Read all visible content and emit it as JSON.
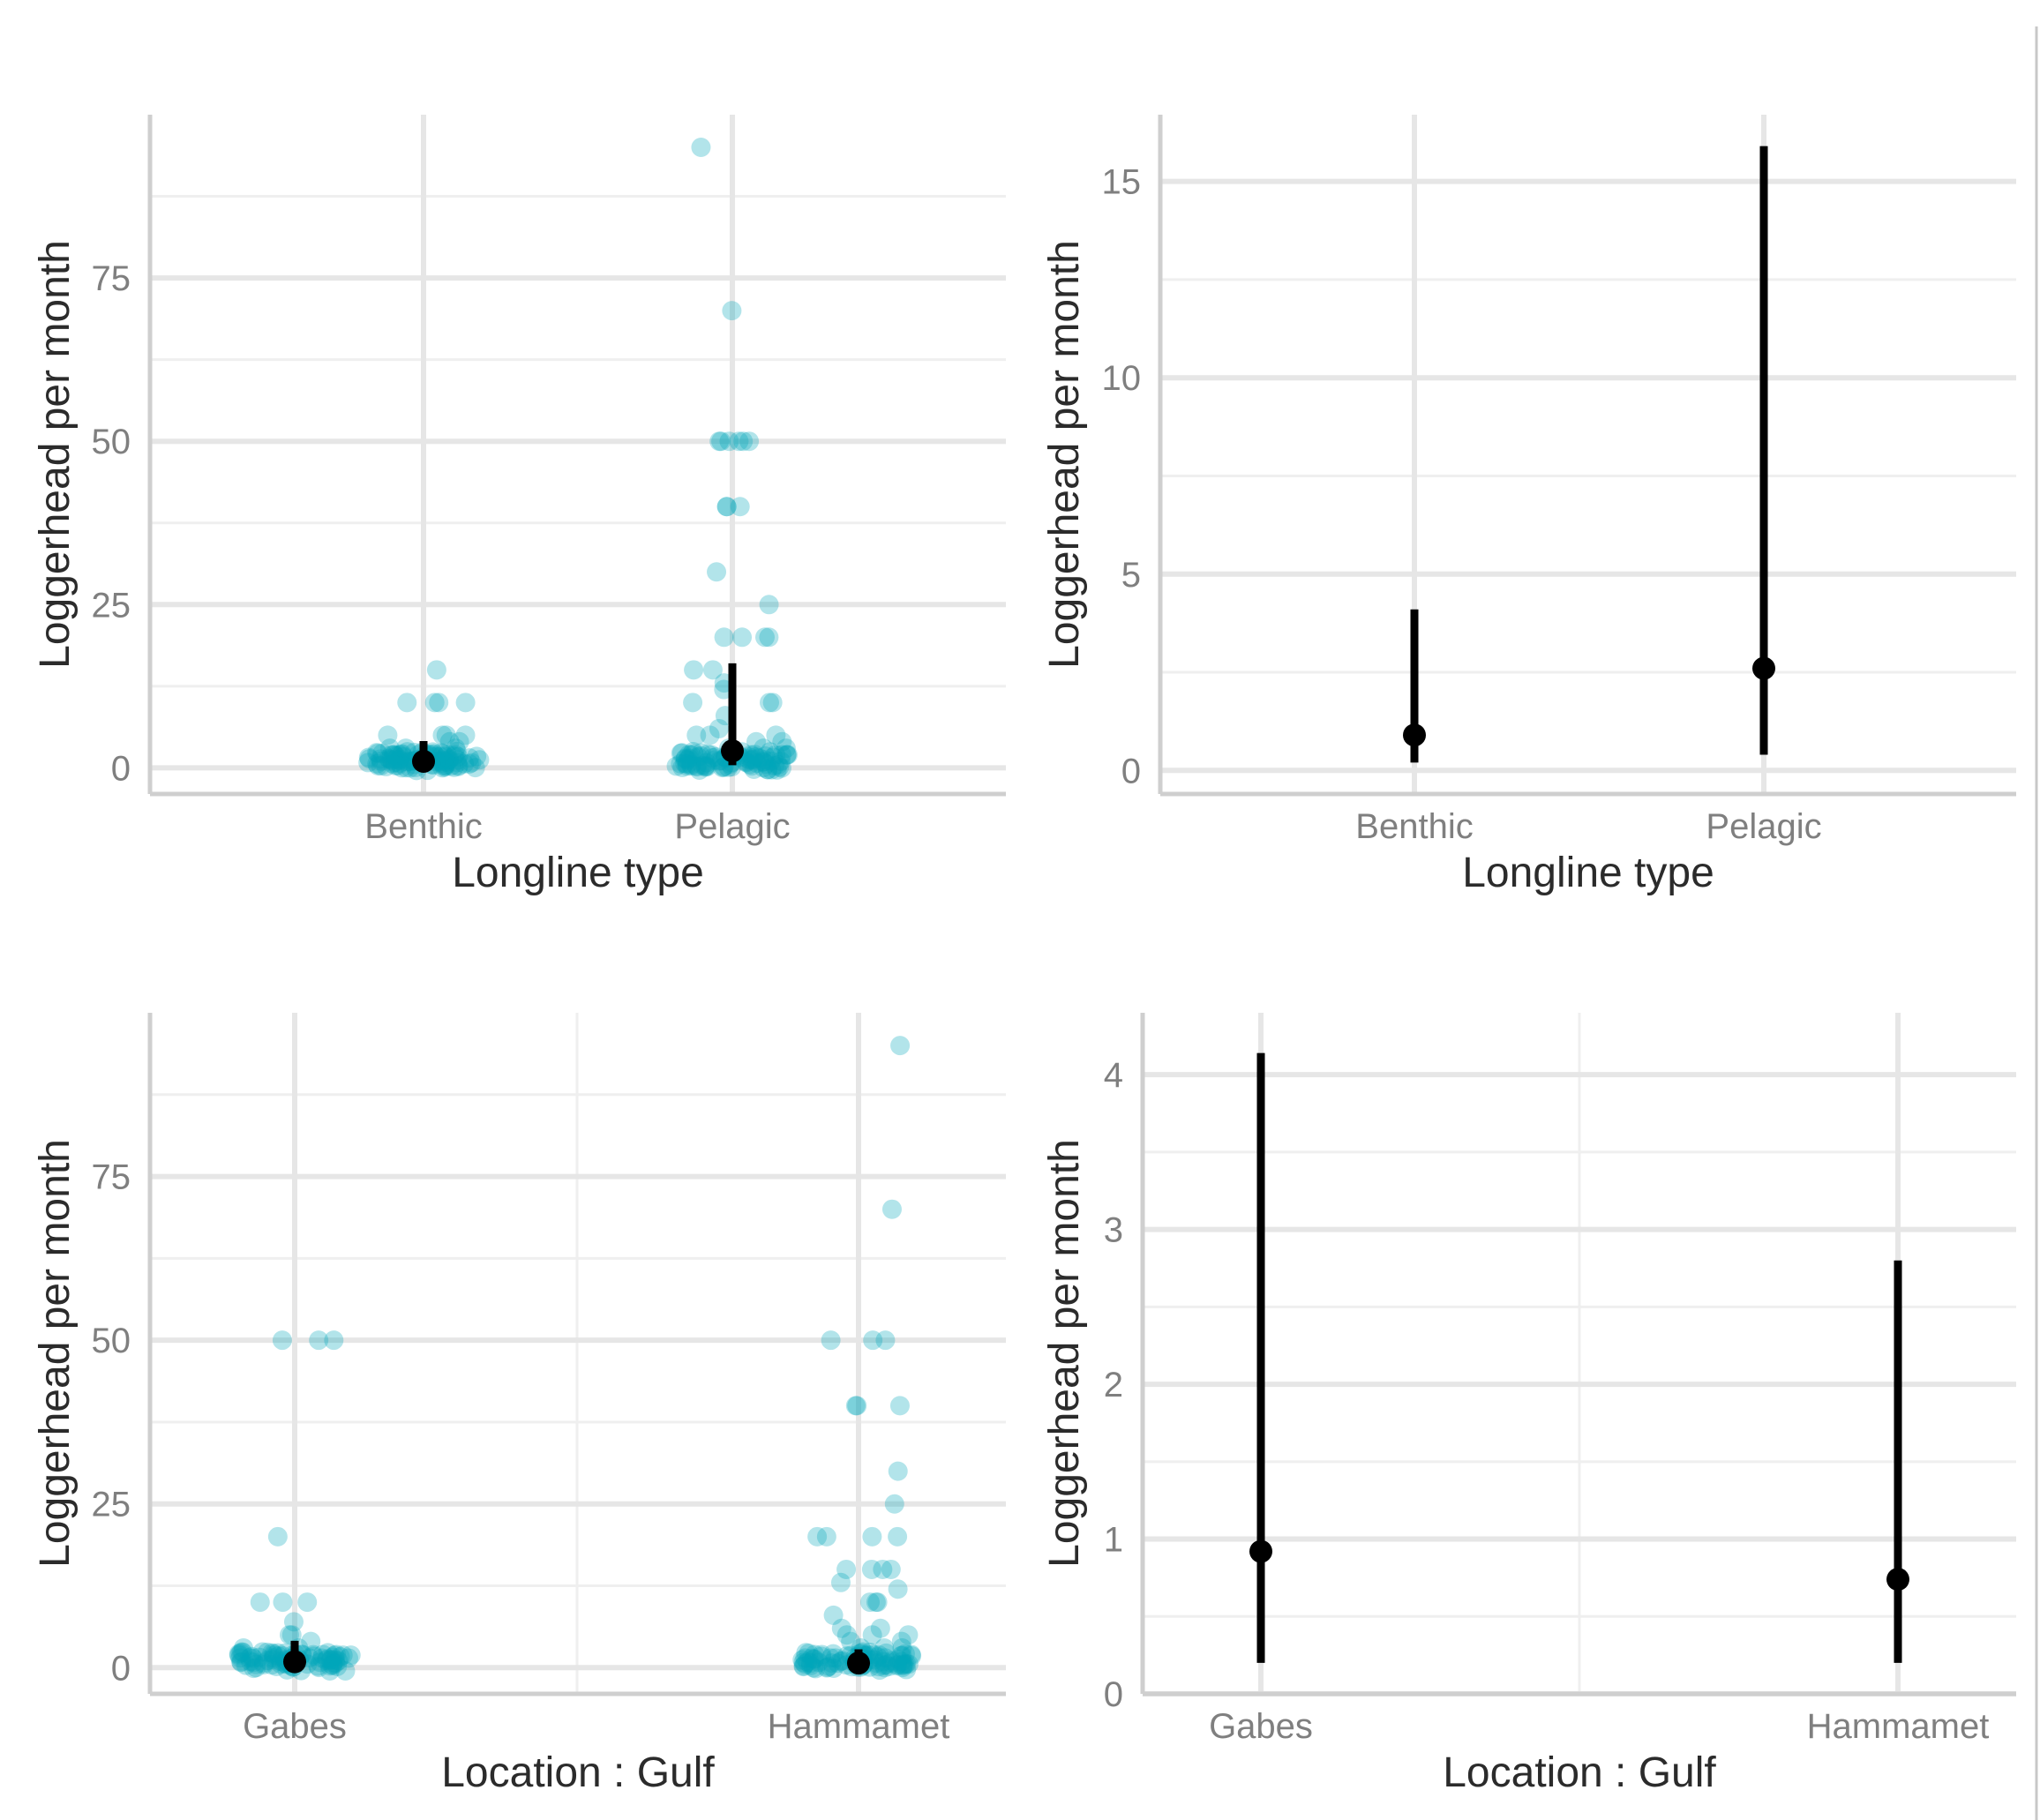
{
  "figure": {
    "panel_count": 4
  },
  "colors": {
    "points": "#00a5b8",
    "estimate": "#000000",
    "grid": "#e6e6e6",
    "axis": "#cfcfcf"
  },
  "chart_data": [
    {
      "id": "A",
      "type": "scatter",
      "subtype": "jitter-with-pointrange",
      "title": "",
      "xlabel": "Longline type",
      "ylabel": "Loggerhead per month",
      "categories": [
        "Benthic",
        "Pelagic"
      ],
      "ylim": [
        -4,
        100
      ],
      "yticks": [
        0,
        25,
        50,
        75
      ],
      "grid": true,
      "series": [
        {
          "name": "Benthic",
          "values": [
            15,
            10,
            10,
            10,
            10,
            5,
            5,
            5,
            5,
            4,
            4,
            3,
            3,
            3,
            2,
            2,
            2,
            2,
            1,
            1,
            1,
            1,
            1,
            1,
            0,
            0,
            0,
            0,
            0,
            0,
            0,
            0,
            0,
            0,
            0,
            0
          ]
        },
        {
          "name": "Pelagic",
          "values": [
            95,
            70,
            50,
            50,
            50,
            50,
            50,
            50,
            40,
            40,
            40,
            30,
            25,
            20,
            20,
            20,
            20,
            15,
            15,
            13,
            12,
            10,
            10,
            10,
            8,
            6,
            5,
            5,
            5,
            4,
            4,
            3,
            3,
            3,
            2,
            2,
            2,
            1,
            1,
            1,
            1,
            1,
            0,
            0,
            0,
            0,
            0,
            0,
            0,
            0,
            0,
            0,
            0,
            0
          ]
        }
      ],
      "estimates": [
        {
          "category": "Benthic",
          "mean": 1,
          "lower": 0.2,
          "upper": 4.1
        },
        {
          "category": "Pelagic",
          "mean": 2.6,
          "lower": 0.4,
          "upper": 16
        }
      ]
    },
    {
      "id": "B",
      "type": "scatter",
      "subtype": "pointrange",
      "title": "",
      "xlabel": "Longline type",
      "ylabel": "Loggerhead per month",
      "categories": [
        "Benthic",
        "Pelagic"
      ],
      "ylim": [
        -0.6,
        16.7
      ],
      "yticks": [
        0,
        5,
        10,
        15
      ],
      "grid": true,
      "estimates": [
        {
          "category": "Benthic",
          "mean": 0.9,
          "lower": 0.2,
          "upper": 4.1
        },
        {
          "category": "Pelagic",
          "mean": 2.6,
          "lower": 0.4,
          "upper": 15.9
        }
      ]
    },
    {
      "id": "C",
      "type": "scatter",
      "subtype": "jitter-with-pointrange",
      "title": "",
      "xlabel": "Location : Gulf",
      "ylabel": "Loggerhead per month",
      "categories": [
        "Gabes",
        "Hammamet"
      ],
      "ylim": [
        -4,
        100
      ],
      "yticks": [
        0,
        25,
        50,
        75
      ],
      "grid": true,
      "series": [
        {
          "name": "Gabes",
          "values": [
            50,
            50,
            50,
            20,
            10,
            10,
            10,
            7,
            5,
            5,
            4,
            3,
            3,
            2,
            2,
            2,
            1,
            1,
            1,
            1,
            0,
            0,
            0,
            0,
            0,
            0,
            0,
            0
          ]
        },
        {
          "name": "Hammamet",
          "values": [
            95,
            70,
            50,
            50,
            50,
            40,
            40,
            40,
            30,
            25,
            20,
            20,
            20,
            20,
            15,
            15,
            15,
            15,
            13,
            12,
            10,
            10,
            10,
            8,
            6,
            6,
            5,
            5,
            5,
            4,
            4,
            3,
            3,
            3,
            2,
            2,
            2,
            1,
            1,
            1,
            1,
            0,
            0,
            0,
            0,
            0,
            0,
            0,
            0,
            0,
            0,
            0
          ]
        }
      ],
      "estimates": [
        {
          "category": "Gabes",
          "mean": 0.9,
          "lower": 0.2,
          "upper": 4.1
        },
        {
          "category": "Hammamet",
          "mean": 0.7,
          "lower": 0.2,
          "upper": 2.8
        }
      ]
    },
    {
      "id": "D",
      "type": "scatter",
      "subtype": "pointrange",
      "title": "",
      "xlabel": "Location : Gulf",
      "ylabel": "Loggerhead per month",
      "categories": [
        "Gabes",
        "Hammamet"
      ],
      "ylim": [
        0,
        4.4
      ],
      "yticks": [
        0,
        1,
        2,
        3,
        4
      ],
      "grid": true,
      "estimates": [
        {
          "category": "Gabes",
          "mean": 0.92,
          "lower": 0.2,
          "upper": 4.14
        },
        {
          "category": "Hammamet",
          "mean": 0.74,
          "lower": 0.2,
          "upper": 2.8
        }
      ]
    }
  ]
}
